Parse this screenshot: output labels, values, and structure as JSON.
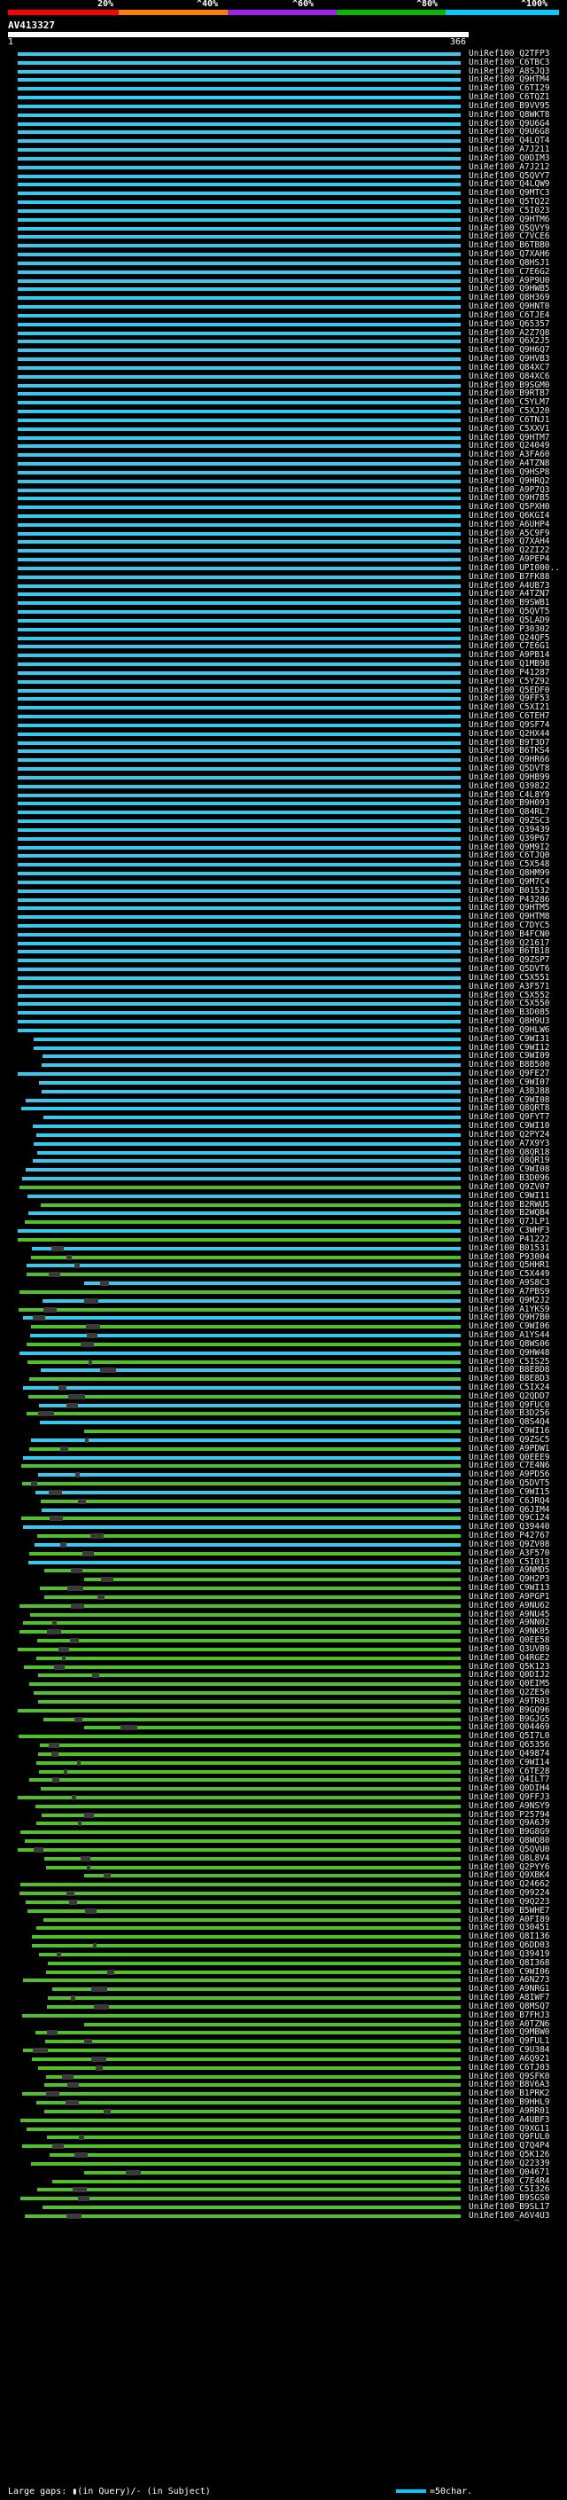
{
  "scale": {
    "labels": [
      "20%",
      "^40%",
      "^60%",
      "^80%",
      "^100%"
    ],
    "colors": [
      "#ff0000",
      "#ff7f00",
      "#a020f0",
      "#00bb00",
      "#00ccff"
    ]
  },
  "query": {
    "name": "AV413327",
    "start": "1",
    "end": "366"
  },
  "hit_ids": [
    "UniRef100_Q2TFP3",
    "UniRef100_C6TBC3",
    "UniRef100_A8SJQ3",
    "UniRef100_Q9HTM4",
    "UniRef100_C6TI29",
    "UniRef100_C6TQZ1",
    "UniRef100_B9VV95",
    "UniRef100_Q8WKT8",
    "UniRef100_Q9U6G4",
    "UniRef100_Q9U6G8",
    "UniRef100_Q4LQT4",
    "UniRef100_A7J211",
    "UniRef100_Q0DIM3",
    "UniRef100_A7J212",
    "UniRef100_Q5QVY7",
    "UniRef100_Q4LQW9",
    "UniRef100_Q9MTC3",
    "UniRef100_Q5TQ22",
    "UniRef100_C5I023",
    "UniRef100_Q9HTM6",
    "UniRef100_Q5QVY9",
    "UniRef100_C7VCE6",
    "UniRef100_B6TBB0",
    "UniRef100_Q7XAH6",
    "UniRef100_Q8HSJ1",
    "UniRef100_C7E6G2",
    "UniRef100_A9P9U0",
    "UniRef100_Q9HWB5",
    "UniRef100_Q8H369",
    "UniRef100_Q9HNT0",
    "UniRef100_C6TJE4",
    "UniRef100_Q65357",
    "UniRef100_A2Z7Q8",
    "UniRef100_Q6X2J5",
    "UniRef100_Q9H6Q7",
    "UniRef100_Q9HVB3",
    "UniRef100_Q84XC7",
    "UniRef100_Q84XC6",
    "UniRef100_B9SGM0",
    "UniRef100_B9RTB7",
    "UniRef100_C5YLM7",
    "UniRef100_C5XJ20",
    "UniRef100_C6TNJ1",
    "UniRef100_C5XXV1",
    "UniRef100_Q9HTM7",
    "UniRef100_Q24049",
    "UniRef100_A3FA60",
    "UniRef100_A4TZN8",
    "UniRef100_Q9HSP8",
    "UniRef100_Q9HRQ2",
    "UniRef100_A9P7Q3",
    "UniRef100_Q9H7B5",
    "UniRef100_Q5PXH0",
    "UniRef100_Q6KGI4",
    "UniRef100_A6UHP4",
    "UniRef100_A5C9F9",
    "UniRef100_Q7XAH4",
    "UniRef100_Q2ZI22",
    "UniRef100_A9PEP4",
    "UniRef100_UPI000..",
    "UniRef100_B7FK88",
    "UniRef100_A4UB73",
    "UniRef100_A4TZN7",
    "UniRef100_B9SWB1",
    "UniRef100_Q5QVT5",
    "UniRef100_Q5LAD9",
    "UniRef100_P30302",
    "UniRef100_Q24QF5",
    "UniRef100_C7E6G1",
    "UniRef100_A9PB14",
    "UniRef100_Q1MB98",
    "UniRef100_P41287",
    "UniRef100_C5YZ92",
    "UniRef100_Q5EDF0",
    "UniRef100_Q9FF53",
    "UniRef100_C5XI21",
    "UniRef100_C6TEH7",
    "UniRef100_Q9SF74",
    "UniRef100_Q2HX44",
    "UniRef100_B9T3D7",
    "UniRef100_B6TKS4",
    "UniRef100_Q9HR66",
    "UniRef100_Q5DVT8",
    "UniRef100_Q9HB99",
    "UniRef100_Q39822",
    "UniRef100_C4L8Y9",
    "UniRef100_B9H093",
    "UniRef100_Q84RL7",
    "UniRef100_Q9ZSC3",
    "UniRef100_Q39439",
    "UniRef100_Q39P67",
    "UniRef100_Q9M9I2",
    "UniRef100_C6TJQ0",
    "UniRef100_C5X548",
    "UniRef100_Q8HM99",
    "UniRef100_Q9M7C4",
    "UniRef100_B01532",
    "UniRef100_P43286",
    "UniRef100_Q9HTM5",
    "UniRef100_Q9HTM8",
    "UniRef100_C7DYC5",
    "UniRef100_B4FCN0",
    "UniRef100_Q21617",
    "UniRef100_B6TB18",
    "UniRef100_Q9ZSP7",
    "UniRef100_Q5DVT6",
    "UniRef100_C5X551",
    "UniRef100_A3F571",
    "UniRef100_C5X552",
    "UniRef100_C5X550",
    "UniRef100_B3D085",
    "UniRef100_Q8H9U3",
    "UniRef100_Q9HLW6",
    "UniRef100_C9WI31",
    "UniRef100_C9WI12",
    "UniRef100_C9WI09",
    "UniRef100_B8B500",
    "UniRef100_Q9FE27",
    "UniRef100_C9WI07",
    "UniRef100_A3BJ88",
    "UniRef100_C9WI08",
    "UniRef100_Q8QRT8",
    "UniRef100_Q9FYT7",
    "UniRef100_C9WI10",
    "UniRef100_Q2PY24",
    "UniRef100_A7X9Y3",
    "UniRef100_Q8QR18",
    "UniRef100_Q8QR19",
    "UniRef100_C9WI08",
    "UniRef100_B3D096",
    "UniRef100_Q9ZV07",
    "UniRef100_C9WI11",
    "UniRef100_B2RWU5",
    "UniRef100_B2WQB4",
    "UniRef100_Q7JLP1",
    "UniRef100_C3WHF3",
    "UniRef100_P41222",
    "UniRef100_B01531",
    "UniRef100_P93004",
    "UniRef100_Q5HHR1",
    "UniRef100_C5X449",
    "UniRef100_A9S8C3",
    "UniRef100_A7PBS9",
    "UniRef100_Q9M2J2",
    "UniRef100_A1YKS9",
    "UniRef100_Q9H7B0",
    "UniRef100_C9WI06",
    "UniRef100_A1YS44",
    "UniRef100_Q8WS06",
    "UniRef100_Q9HW48",
    "UniRef100_C5IS25",
    "UniRef100_B8E8D8",
    "UniRef100_B8E8D3",
    "UniRef100_C5IX24",
    "UniRef100_Q2QDD7",
    "UniRef100_Q9FUC0",
    "UniRef100_B3D256",
    "UniRef100_Q8S4Q4",
    "UniRef100_C9WI16",
    "UniRef100_Q9ZSC5",
    "UniRef100_A9PDW1",
    "UniRef100_Q0EEE9",
    "UniRef100_C7E4N6",
    "UniRef100_A9PD56",
    "UniRef100_Q5DVT5",
    "UniRef100_C9WI15",
    "UniRef100_C6JRQ4",
    "UniRef100_Q6JIM4",
    "UniRef100_Q9C124",
    "UniRef100_Q39440",
    "UniRef100_P42767",
    "UniRef100_Q9ZV08",
    "UniRef100_A3F570",
    "UniRef100_C5I013",
    "UniRef100_A9NMD5",
    "UniRef100_Q9H2P3",
    "UniRef100_C9WI13",
    "UniRef100_A9PGP1",
    "UniRef100_A9NU62",
    "UniRef100_A9NU45",
    "UniRef100_A9NN02",
    "UniRef100_A9NK05",
    "UniRef100_Q0EE58",
    "UniRef100_Q3UVB9",
    "UniRef100_Q4RGE2",
    "UniRef100_Q5K123",
    "UniRef100_Q0DIJ2",
    "UniRef100_Q0EIM5",
    "UniRef100_Q2ZE50",
    "UniRef100_A9TR03",
    "UniRef100_B9GQ96",
    "UniRef100_B9GJG5",
    "UniRef100_Q04469",
    "UniRef100_Q5I7L0",
    "UniRef100_Q65356",
    "UniRef100_Q49874",
    "UniRef100_C9WI14",
    "UniRef100_C6TE28",
    "UniRef100_Q4ILT7",
    "UniRef100_Q0DIH4",
    "UniRef100_Q9FFJ3",
    "UniRef100_A9NSY9",
    "UniRef100_P25794",
    "UniRef100_Q9A6J9",
    "UniRef100_B9G8G9",
    "UniRef100_Q8WQ80",
    "UniRef100_Q5QVU0",
    "UniRef100_Q8L8V4",
    "UniRef100_Q2PYY6",
    "UniRef100_Q9XBK4",
    "UniRef100_Q24662",
    "UniRef100_Q99224",
    "UniRef100_Q9Q223",
    "UniRef100_B5WHE7",
    "UniRef100_A0FI89",
    "UniRef100_Q30451",
    "UniRef100_Q8I136",
    "UniRef100_Q6DD03",
    "UniRef100_Q39419",
    "UniRef100_Q8I368",
    "UniRef100_C9WI06",
    "UniRef100_A6N273",
    "UniRef100_A9NRG1",
    "UniRef100_A8IWF7",
    "UniRef100_Q8MSQ7",
    "UniRef100_B7FHJ3",
    "UniRef100_A0TZN6",
    "UniRef100_Q9MBW0",
    "UniRef100_Q9FUL1",
    "UniRef100_C9U384",
    "UniRef100_A6Q921",
    "UniRef100_C6TJ03",
    "UniRef100_Q9SFK0",
    "UniRef100_B8V6A3",
    "UniRef100_B1PRK2",
    "UniRef100_B9HHL9",
    "UniRef100_A9RR01",
    "UniRef100_A4UBF3",
    "UniRef100_Q9XG11",
    "UniRef100_Q9FUL0",
    "UniRef100_Q7Q4P4",
    "UniRef100_Q5K126",
    "UniRef100_Q22339",
    "UniRef100_Q04671",
    "UniRef100_C7E4R4",
    "UniRef100_C5I326",
    "UniRef100_B9SGS0",
    "UniRef100_B9SL17",
    "UniRef100_A6V4U3"
  ],
  "legend": {
    "left": "Large gaps: ▮(in Query)/- (in Subject)",
    "right": "=50char."
  }
}
